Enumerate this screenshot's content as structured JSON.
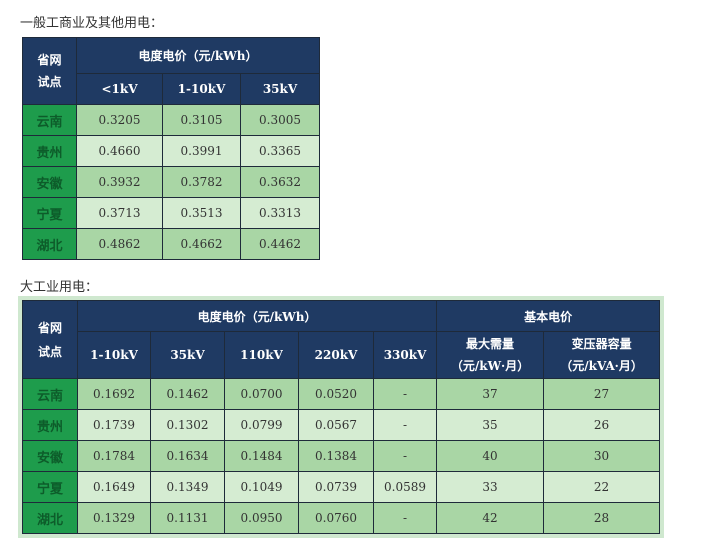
{
  "section1": {
    "caption": "一般工商业及其他用电：",
    "header": {
      "province": "省网试点",
      "group": "电度电价（元/kWh）",
      "columns": [
        "<1kV",
        "1-10kV",
        "35kV"
      ]
    },
    "rows": [
      {
        "province": "云南",
        "values": [
          "0.3205",
          "0.3105",
          "0.3005"
        ]
      },
      {
        "province": "贵州",
        "values": [
          "0.4660",
          "0.3991",
          "0.3365"
        ]
      },
      {
        "province": "安徽",
        "values": [
          "0.3932",
          "0.3782",
          "0.3632"
        ]
      },
      {
        "province": "宁夏",
        "values": [
          "0.3713",
          "0.3513",
          "0.3313"
        ]
      },
      {
        "province": "湖北",
        "values": [
          "0.4862",
          "0.4662",
          "0.4462"
        ]
      }
    ]
  },
  "section2": {
    "caption": "大工业用电：",
    "header": {
      "province": "省网试点",
      "group1": "电度电价（元/kWh）",
      "group2": "基本电价",
      "columns": [
        "1-10kV",
        "35kV",
        "110kV",
        "220kV",
        "330kV"
      ],
      "basic_columns": [
        {
          "line1": "最大需量",
          "line2": "（元/kW·月）"
        },
        {
          "line1": "变压器容量",
          "line2": "（元/kVA·月）"
        }
      ]
    },
    "rows": [
      {
        "province": "云南",
        "values": [
          "0.1692",
          "0.1462",
          "0.0700",
          "0.0520",
          "-",
          "37",
          "27"
        ]
      },
      {
        "province": "贵州",
        "values": [
          "0.1739",
          "0.1302",
          "0.0799",
          "0.0567",
          "-",
          "35",
          "26"
        ]
      },
      {
        "province": "安徽",
        "values": [
          "0.1784",
          "0.1634",
          "0.1484",
          "0.1384",
          "-",
          "40",
          "30"
        ]
      },
      {
        "province": "宁夏",
        "values": [
          "0.1649",
          "0.1349",
          "0.1049",
          "0.0739",
          "0.0589",
          "33",
          "22"
        ]
      },
      {
        "province": "湖北",
        "values": [
          "0.1329",
          "0.1131",
          "0.0950",
          "0.0760",
          "-",
          "42",
          "28"
        ]
      }
    ]
  },
  "colors": {
    "header": "#1f3a63",
    "province_col": "#1e9c4c",
    "row_dark": "#a9d6a5",
    "row_light": "#d5ecd2"
  }
}
